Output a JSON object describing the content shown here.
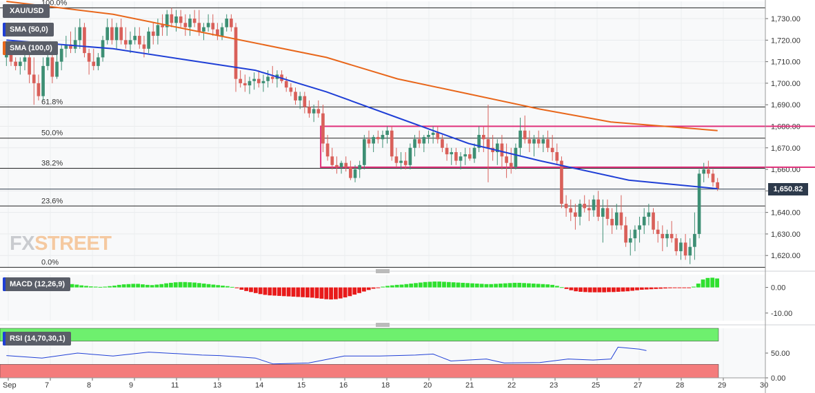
{
  "symbol": "XAU/USD",
  "watermark": {
    "prefix": "FX",
    "suffix": "STREET"
  },
  "legends": {
    "sma50": "SMA (50,0)",
    "sma100": "SMA (100,0)",
    "macd": "MACD (12,26,9)",
    "rsi": "RSI (14,70,30,1)"
  },
  "current_price_label": "1,650.82",
  "colors": {
    "bull": "#3d8f74",
    "bear": "#d9605a",
    "sma50": "#1f3fd6",
    "sma100": "#e8661a",
    "range_box": "#e0307a",
    "macd_pos": "#2fe02f",
    "macd_neg": "#e81a1a",
    "rsi_overbought": "#6ef06e",
    "rsi_oversold": "#f47c7c"
  },
  "chart_data": [
    {
      "type": "candlestick",
      "title": "XAU/USD",
      "y_axis": {
        "min": 1614,
        "max": 1738,
        "ticks": [
          "1,620.00",
          "1,630.00",
          "1,640.00",
          "1,650.00",
          "1,660.00",
          "1,670.00",
          "1,680.00",
          "1,690.00",
          "1,700.00",
          "1,710.00",
          "1,720.00",
          "1,730.00"
        ]
      },
      "x_axis": {
        "labels": [
          "Sep",
          "7",
          "8",
          "9",
          "11",
          "13",
          "14",
          "15",
          "16",
          "18",
          "20",
          "21",
          "22",
          "23",
          "25",
          "27",
          "28",
          "29",
          "30"
        ]
      },
      "fibonacci": [
        {
          "label": "100.0%",
          "price": 1735
        },
        {
          "label": "61.8%",
          "price": 1689
        },
        {
          "label": "50.0%",
          "price": 1674.5
        },
        {
          "label": "38.2%",
          "price": 1660.5
        },
        {
          "label": "23.6%",
          "price": 1643
        },
        {
          "label": "0.0%",
          "price": 1614.5
        }
      ],
      "current_price": 1650.82,
      "range_box": {
        "from_index": 69,
        "to_index": 179,
        "top": 1680,
        "bottom": 1661
      },
      "candles": [
        [
          1712,
          1718,
          1708,
          1714
        ],
        [
          1714,
          1716,
          1708,
          1710
        ],
        [
          1710,
          1712,
          1706,
          1708
        ],
        [
          1708,
          1712,
          1704,
          1710
        ],
        [
          1710,
          1714,
          1706,
          1712
        ],
        [
          1712,
          1714,
          1700,
          1704
        ],
        [
          1704,
          1712,
          1690,
          1700
        ],
        [
          1700,
          1704,
          1692,
          1694
        ],
        [
          1694,
          1712,
          1692,
          1708
        ],
        [
          1708,
          1714,
          1706,
          1712
        ],
        [
          1712,
          1714,
          1700,
          1703
        ],
        [
          1703,
          1718,
          1702,
          1710
        ],
        [
          1710,
          1718,
          1706,
          1716
        ],
        [
          1716,
          1722,
          1712,
          1718
        ],
        [
          1718,
          1724,
          1714,
          1716
        ],
        [
          1716,
          1726,
          1714,
          1720
        ],
        [
          1720,
          1730,
          1716,
          1726
        ],
        [
          1726,
          1728,
          1712,
          1714
        ],
        [
          1714,
          1716,
          1704,
          1710
        ],
        [
          1710,
          1716,
          1706,
          1708
        ],
        [
          1708,
          1714,
          1706,
          1712
        ],
        [
          1712,
          1722,
          1710,
          1720
        ],
        [
          1720,
          1730,
          1718,
          1726
        ],
        [
          1726,
          1730,
          1718,
          1720
        ],
        [
          1720,
          1728,
          1716,
          1726
        ],
        [
          1726,
          1730,
          1718,
          1720
        ],
        [
          1720,
          1726,
          1716,
          1718
        ],
        [
          1718,
          1724,
          1714,
          1720
        ],
        [
          1720,
          1726,
          1718,
          1722
        ],
        [
          1722,
          1726,
          1716,
          1718
        ],
        [
          1718,
          1722,
          1712,
          1716
        ],
        [
          1716,
          1726,
          1714,
          1724
        ],
        [
          1724,
          1728,
          1718,
          1722
        ],
        [
          1722,
          1730,
          1718,
          1727
        ],
        [
          1727,
          1732,
          1722,
          1726
        ],
        [
          1726,
          1734,
          1722,
          1732
        ],
        [
          1732,
          1735,
          1726,
          1728
        ],
        [
          1728,
          1734,
          1724,
          1731
        ],
        [
          1731,
          1734,
          1726,
          1728
        ],
        [
          1728,
          1732,
          1722,
          1726
        ],
        [
          1726,
          1732,
          1722,
          1730
        ],
        [
          1730,
          1734,
          1726,
          1728
        ],
        [
          1728,
          1734,
          1722,
          1724
        ],
        [
          1724,
          1728,
          1720,
          1726
        ],
        [
          1726,
          1732,
          1724,
          1728
        ],
        [
          1728,
          1732,
          1722,
          1725
        ],
        [
          1725,
          1728,
          1720,
          1722
        ],
        [
          1722,
          1728,
          1720,
          1726
        ],
        [
          1726,
          1732,
          1724,
          1730
        ],
        [
          1730,
          1732,
          1724,
          1726
        ],
        [
          1726,
          1728,
          1696,
          1702
        ],
        [
          1702,
          1706,
          1698,
          1700
        ],
        [
          1700,
          1704,
          1696,
          1699
        ],
        [
          1699,
          1703,
          1695,
          1701
        ],
        [
          1701,
          1705,
          1697,
          1702
        ],
        [
          1702,
          1706,
          1698,
          1700
        ],
        [
          1700,
          1704,
          1696,
          1701
        ],
        [
          1701,
          1706,
          1698,
          1703
        ],
        [
          1703,
          1708,
          1700,
          1702
        ],
        [
          1702,
          1706,
          1698,
          1704
        ],
        [
          1704,
          1706,
          1700,
          1701
        ],
        [
          1701,
          1703,
          1696,
          1698
        ],
        [
          1698,
          1700,
          1694,
          1696
        ],
        [
          1696,
          1698,
          1690,
          1692
        ],
        [
          1692,
          1696,
          1688,
          1694
        ],
        [
          1694,
          1696,
          1686,
          1689
        ],
        [
          1689,
          1692,
          1684,
          1686
        ],
        [
          1686,
          1690,
          1682,
          1688
        ],
        [
          1688,
          1692,
          1684,
          1686
        ],
        [
          1686,
          1690,
          1668,
          1672
        ],
        [
          1672,
          1676,
          1664,
          1666
        ],
        [
          1666,
          1670,
          1660,
          1662
        ],
        [
          1662,
          1666,
          1658,
          1661
        ],
        [
          1661,
          1664,
          1658,
          1663
        ],
        [
          1663,
          1666,
          1659,
          1661
        ],
        [
          1661,
          1664,
          1655,
          1656
        ],
        [
          1656,
          1662,
          1654,
          1660
        ],
        [
          1660,
          1664,
          1656,
          1662
        ],
        [
          1662,
          1676,
          1660,
          1674
        ],
        [
          1674,
          1678,
          1670,
          1672
        ],
        [
          1672,
          1676,
          1668,
          1675
        ],
        [
          1675,
          1678,
          1672,
          1674
        ],
        [
          1674,
          1678,
          1670,
          1676
        ],
        [
          1676,
          1680,
          1672,
          1678
        ],
        [
          1678,
          1680,
          1664,
          1666
        ],
        [
          1666,
          1670,
          1661,
          1663
        ],
        [
          1663,
          1668,
          1660,
          1664
        ],
        [
          1664,
          1668,
          1660,
          1662
        ],
        [
          1662,
          1672,
          1660,
          1670
        ],
        [
          1670,
          1676,
          1666,
          1674
        ],
        [
          1674,
          1678,
          1670,
          1672
        ],
        [
          1672,
          1676,
          1668,
          1675
        ],
        [
          1675,
          1678,
          1672,
          1676
        ],
        [
          1676,
          1680,
          1672,
          1677
        ],
        [
          1677,
          1680,
          1672,
          1674
        ],
        [
          1674,
          1676,
          1668,
          1670
        ],
        [
          1670,
          1672,
          1664,
          1667
        ],
        [
          1667,
          1670,
          1662,
          1668
        ],
        [
          1668,
          1670,
          1662,
          1664
        ],
        [
          1664,
          1668,
          1660,
          1666
        ],
        [
          1666,
          1670,
          1662,
          1667
        ],
        [
          1667,
          1670,
          1664,
          1665
        ],
        [
          1665,
          1672,
          1663,
          1670
        ],
        [
          1670,
          1680,
          1668,
          1676
        ],
        [
          1676,
          1680,
          1668,
          1674
        ],
        [
          1674,
          1690,
          1654,
          1670
        ],
        [
          1670,
          1676,
          1664,
          1668
        ],
        [
          1668,
          1674,
          1662,
          1672
        ],
        [
          1672,
          1676,
          1660,
          1666
        ],
        [
          1666,
          1672,
          1656,
          1663
        ],
        [
          1663,
          1670,
          1658,
          1661
        ],
        [
          1661,
          1672,
          1660,
          1670
        ],
        [
          1670,
          1684,
          1666,
          1678
        ],
        [
          1678,
          1685,
          1672,
          1674
        ],
        [
          1674,
          1678,
          1668,
          1672
        ],
        [
          1672,
          1676,
          1666,
          1674
        ],
        [
          1674,
          1678,
          1670,
          1672
        ],
        [
          1672,
          1676,
          1668,
          1674
        ],
        [
          1674,
          1678,
          1668,
          1670
        ],
        [
          1670,
          1676,
          1664,
          1668
        ],
        [
          1668,
          1672,
          1662,
          1664
        ],
        [
          1664,
          1666,
          1642,
          1644
        ],
        [
          1644,
          1648,
          1638,
          1642
        ],
        [
          1642,
          1646,
          1636,
          1640
        ],
        [
          1640,
          1644,
          1632,
          1638
        ],
        [
          1638,
          1646,
          1634,
          1644
        ],
        [
          1644,
          1648,
          1640,
          1642
        ],
        [
          1642,
          1646,
          1636,
          1641
        ],
        [
          1641,
          1648,
          1638,
          1646
        ],
        [
          1646,
          1650,
          1636,
          1638
        ],
        [
          1638,
          1646,
          1626,
          1642
        ],
        [
          1642,
          1646,
          1634,
          1637
        ],
        [
          1637,
          1642,
          1630,
          1634
        ],
        [
          1634,
          1644,
          1632,
          1640
        ],
        [
          1640,
          1648,
          1632,
          1634
        ],
        [
          1634,
          1638,
          1624,
          1626
        ],
        [
          1626,
          1632,
          1620,
          1628
        ],
        [
          1628,
          1634,
          1622,
          1632
        ],
        [
          1632,
          1638,
          1626,
          1634
        ],
        [
          1634,
          1642,
          1630,
          1638
        ],
        [
          1638,
          1644,
          1634,
          1640
        ],
        [
          1640,
          1642,
          1630,
          1632
        ],
        [
          1632,
          1636,
          1626,
          1630
        ],
        [
          1630,
          1634,
          1622,
          1628
        ],
        [
          1628,
          1632,
          1624,
          1630
        ],
        [
          1630,
          1636,
          1626,
          1628
        ],
        [
          1628,
          1630,
          1620,
          1622
        ],
        [
          1622,
          1628,
          1618,
          1626
        ],
        [
          1626,
          1630,
          1618,
          1620
        ],
        [
          1620,
          1628,
          1616,
          1624
        ],
        [
          1624,
          1640,
          1618,
          1630
        ],
        [
          1630,
          1660,
          1628,
          1658
        ],
        [
          1658,
          1663,
          1654,
          1660
        ],
        [
          1660,
          1664,
          1656,
          1658
        ],
        [
          1658,
          1660,
          1652,
          1654
        ],
        [
          1654,
          1656,
          1650,
          1651
        ]
      ],
      "sma50": [
        [
          0,
          1720
        ],
        [
          30,
          1716
        ],
        [
          50,
          1711
        ],
        [
          70,
          1706
        ],
        [
          90,
          1696
        ],
        [
          110,
          1684
        ],
        [
          130,
          1672
        ],
        [
          150,
          1664
        ],
        [
          175,
          1655
        ],
        [
          200,
          1651
        ]
      ],
      "sma100": [
        [
          0,
          1738
        ],
        [
          30,
          1732
        ],
        [
          60,
          1722
        ],
        [
          90,
          1712
        ],
        [
          110,
          1702
        ],
        [
          130,
          1695
        ],
        [
          150,
          1688
        ],
        [
          170,
          1682
        ],
        [
          200,
          1678
        ]
      ]
    },
    {
      "type": "bar",
      "title": "MACD (12,26,9)",
      "y_axis": {
        "min": -13,
        "max": 5,
        "ticks": [
          "0.00",
          "-10.00"
        ]
      },
      "histogram": [
        0.6,
        0.8,
        0.9,
        1.1,
        1.0,
        0.9,
        0.7,
        0.5,
        0.6,
        0.9,
        1.2,
        1.4,
        1.5,
        1.5,
        1.3,
        1.1,
        0.8,
        0.6,
        0.4,
        0.3,
        0.2,
        0.3,
        0.5,
        0.7,
        1.0,
        1.2,
        1.3,
        1.4,
        1.4,
        1.2,
        1.0,
        0.9,
        1.1,
        1.3,
        1.6,
        1.8,
        2.0,
        2.1,
        2.1,
        2.0,
        1.9,
        1.7,
        1.5,
        1.3,
        1.1,
        0.9,
        0.7,
        0.5,
        0.2,
        -0.3,
        -0.9,
        -1.4,
        -1.8,
        -2.2,
        -2.6,
        -2.9,
        -3.1,
        -3.2,
        -3.3,
        -3.4,
        -3.5,
        -3.6,
        -3.7,
        -3.8,
        -3.9,
        -4.0,
        -4.2,
        -4.4,
        -4.6,
        -4.7,
        -4.6,
        -4.3,
        -3.9,
        -3.4,
        -2.8,
        -2.2,
        -1.6,
        -1.0,
        -0.5,
        -0.1,
        0.3,
        0.6,
        0.8,
        1.0,
        1.1,
        1.3,
        1.5,
        1.7,
        1.9,
        2.1,
        2.2,
        2.3,
        2.3,
        2.2,
        2.1,
        2.0,
        1.9,
        1.8,
        1.7,
        1.6,
        1.5,
        1.4,
        1.3,
        1.3,
        1.4,
        1.5,
        1.6,
        1.7,
        1.8,
        1.8,
        1.7,
        1.6,
        1.5,
        1.4,
        1.3,
        1.2,
        1.0,
        0.6,
        0.1,
        -0.6,
        -1.1,
        -1.5,
        -1.7,
        -1.8,
        -1.9,
        -1.9,
        -1.9,
        -1.9,
        -1.8,
        -1.8,
        -1.7,
        -1.6,
        -1.5,
        -1.3,
        -1.1,
        -0.9,
        -0.8,
        -0.7,
        -0.6,
        -0.5,
        -0.4,
        -0.3,
        -0.2,
        -0.1,
        -0.1,
        -0.1,
        0.3,
        1.5,
        3.1,
        3.7,
        3.8,
        3.5
      ]
    },
    {
      "type": "line",
      "title": "RSI (14,70,30,1)",
      "y_axis": {
        "min": 0,
        "max": 100,
        "ticks": [
          "50.00",
          "0.00"
        ],
        "overbought": 70,
        "oversold": 30
      },
      "points": [
        [
          0,
          45
        ],
        [
          10,
          40
        ],
        [
          20,
          50
        ],
        [
          30,
          44
        ],
        [
          40,
          52
        ],
        [
          50,
          48
        ],
        [
          55,
          46
        ],
        [
          60,
          45
        ],
        [
          70,
          40
        ],
        [
          75,
          28
        ],
        [
          85,
          30
        ],
        [
          95,
          44
        ],
        [
          105,
          44
        ],
        [
          115,
          46
        ],
        [
          120,
          48
        ],
        [
          125,
          34
        ],
        [
          135,
          38
        ],
        [
          140,
          30
        ],
        [
          150,
          31
        ],
        [
          158,
          38
        ],
        [
          165,
          36
        ],
        [
          170,
          38
        ],
        [
          172,
          62
        ],
        [
          178,
          58
        ],
        [
          180,
          55
        ]
      ]
    }
  ]
}
